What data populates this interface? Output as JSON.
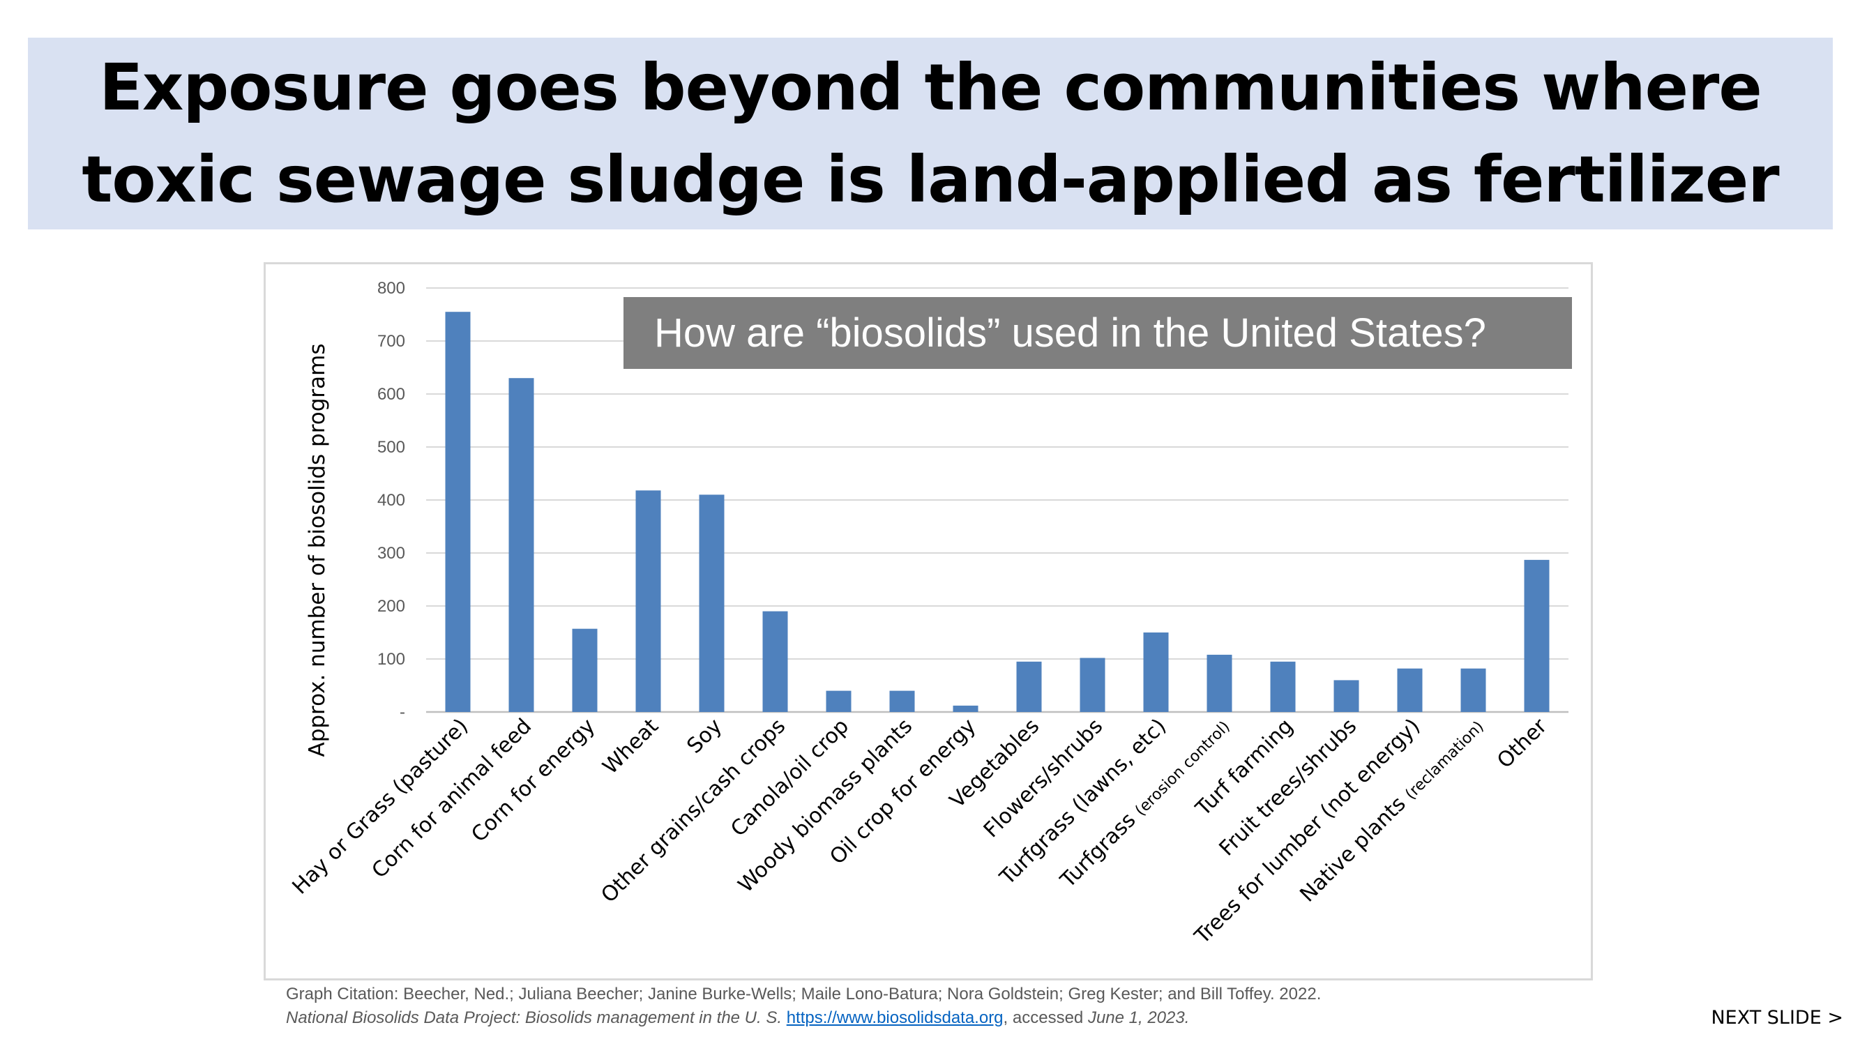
{
  "slide": {
    "title_line1": "Exposure goes beyond the communities where",
    "title_line2": "toxic sewage sludge is land-applied as fertilizer",
    "callout": "How are “biosolids” used in the United States?",
    "citation_line1": "Graph Citation:  Beecher, Ned.; Juliana Beecher; Janine Burke-Wells; Maile Lono-Batura; Nora Goldstein; Greg Kester; and Bill Toffey. 2022.",
    "citation_line2_italic": "National Biosolids Data Project: Biosolids management in the U. S.",
    "citation_link": "https://www.biosolidsdata.org",
    "citation_accessed": ", accessed ",
    "citation_date": "June 1, 2023.",
    "next_slide": "NEXT SLIDE >"
  },
  "colors": {
    "banner": "#d9e1f2",
    "bar": "#4f81bd",
    "callout": "#7f7f7f",
    "grid": "#d9d9d9"
  },
  "chart_data": {
    "type": "bar",
    "title": "",
    "xlabel": "",
    "ylabel": "Approx. number of biosolids programs",
    "ylim": [
      0,
      800
    ],
    "yticks": [
      0,
      100,
      200,
      300,
      400,
      500,
      600,
      700,
      800
    ],
    "ytick_labels": [
      "-",
      "100",
      "200",
      "300",
      "400",
      "500",
      "600",
      "700",
      "800"
    ],
    "grid": true,
    "categories": [
      {
        "main": "Hay or Grass (pasture)",
        "small": ""
      },
      {
        "main": "Corn for animal feed",
        "small": ""
      },
      {
        "main": "Corn for energy",
        "small": ""
      },
      {
        "main": "Wheat",
        "small": ""
      },
      {
        "main": "Soy",
        "small": ""
      },
      {
        "main": "Other grains/cash crops",
        "small": ""
      },
      {
        "main": "Canola/oil crop",
        "small": ""
      },
      {
        "main": "Woody biomass plants",
        "small": ""
      },
      {
        "main": "Oil crop for energy",
        "small": ""
      },
      {
        "main": "Vegetables",
        "small": ""
      },
      {
        "main": "Flowers/shrubs",
        "small": ""
      },
      {
        "main": "Turfgrass (lawns, etc)",
        "small": ""
      },
      {
        "main": "Turfgrass ",
        "small": "(erosion control)"
      },
      {
        "main": "Turf farming",
        "small": ""
      },
      {
        "main": "Fruit trees/shrubs",
        "small": ""
      },
      {
        "main": "Trees for lumber (not energy)",
        "small": ""
      },
      {
        "main": "Native plants ",
        "small": "(reclamation)"
      },
      {
        "main": "Other",
        "small": ""
      }
    ],
    "values": [
      755,
      630,
      157,
      418,
      410,
      190,
      40,
      40,
      12,
      95,
      102,
      150,
      108,
      95,
      60,
      82,
      82,
      287
    ]
  }
}
